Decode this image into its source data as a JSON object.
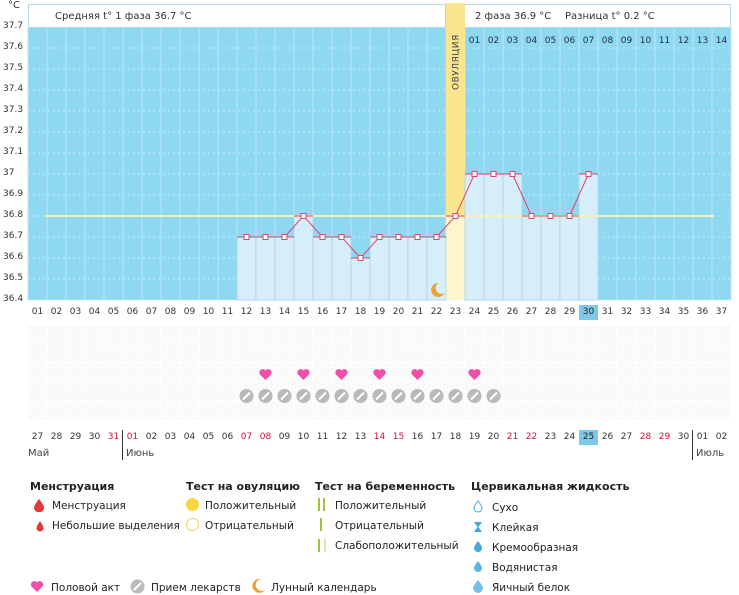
{
  "chart_data": {
    "type": "line",
    "unit": "°C",
    "y_ticks": [
      "36.4",
      "36.5",
      "36.6",
      "36.7",
      "36.8",
      "36.9",
      "37",
      "37.1",
      "37.2",
      "37.3",
      "37.4",
      "37.5",
      "37.6",
      "37.7"
    ],
    "ylim": [
      36.4,
      37.7
    ],
    "cycle_days": [
      "01",
      "02",
      "03",
      "04",
      "05",
      "06",
      "07",
      "08",
      "09",
      "10",
      "11",
      "12",
      "13",
      "14",
      "15",
      "16",
      "17",
      "18",
      "19",
      "20",
      "21",
      "22",
      "23",
      "24",
      "25",
      "26",
      "27",
      "28",
      "29",
      "30",
      "31",
      "32",
      "33",
      "34",
      "35",
      "36",
      "37"
    ],
    "post_ovulation_days": [
      "01",
      "02",
      "03",
      "04",
      "05",
      "06",
      "07",
      "08",
      "09",
      "10",
      "11",
      "12",
      "13",
      "14"
    ],
    "series": [
      {
        "values": [
          {
            "day": 12,
            "temp": 36.7
          },
          {
            "day": 13,
            "temp": 36.7
          },
          {
            "day": 14,
            "temp": 36.7
          },
          {
            "day": 15,
            "temp": 36.8
          },
          {
            "day": 16,
            "temp": 36.7
          },
          {
            "day": 17,
            "temp": 36.7
          },
          {
            "day": 18,
            "temp": 36.6
          },
          {
            "day": 19,
            "temp": 36.7
          },
          {
            "day": 20,
            "temp": 36.7
          },
          {
            "day": 21,
            "temp": 36.7
          },
          {
            "day": 22,
            "temp": 36.7
          },
          {
            "day": 23,
            "temp": 36.8
          },
          {
            "day": 24,
            "temp": 37.0
          },
          {
            "day": 25,
            "temp": 37.0
          },
          {
            "day": 26,
            "temp": 37.0
          },
          {
            "day": 27,
            "temp": 36.8
          },
          {
            "day": 28,
            "temp": 36.8
          },
          {
            "day": 29,
            "temp": 36.8
          },
          {
            "day": 30,
            "temp": 37.0
          }
        ]
      }
    ],
    "coverline": 36.8,
    "ovulation_day": 23,
    "ovulation_label": "ОВУЛЯЦИЯ",
    "current_day": 30,
    "moon_day": 22,
    "intercourse_days": [
      13,
      15,
      17,
      19,
      21,
      24
    ],
    "medication_days": [
      12,
      13,
      14,
      15,
      16,
      17,
      18,
      19,
      20,
      21,
      22,
      23,
      24,
      25
    ]
  },
  "header": {
    "phase1": "Средняя t° 1 фаза 36.7 °C",
    "phase2": "2 фаза 36.9 °C",
    "diff": "Разница t° 0.2 °C"
  },
  "calendar": {
    "dates": [
      {
        "d": "27",
        "red": false
      },
      {
        "d": "28",
        "red": false
      },
      {
        "d": "29",
        "red": false
      },
      {
        "d": "30",
        "red": false
      },
      {
        "d": "31",
        "red": true
      },
      {
        "d": "01",
        "red": true
      },
      {
        "d": "02",
        "red": false
      },
      {
        "d": "03",
        "red": false
      },
      {
        "d": "04",
        "red": false
      },
      {
        "d": "05",
        "red": false
      },
      {
        "d": "06",
        "red": false
      },
      {
        "d": "07",
        "red": true
      },
      {
        "d": "08",
        "red": true
      },
      {
        "d": "09",
        "red": false
      },
      {
        "d": "10",
        "red": false
      },
      {
        "d": "11",
        "red": false
      },
      {
        "d": "12",
        "red": false
      },
      {
        "d": "13",
        "red": false
      },
      {
        "d": "14",
        "red": true
      },
      {
        "d": "15",
        "red": true
      },
      {
        "d": "16",
        "red": false
      },
      {
        "d": "17",
        "red": false
      },
      {
        "d": "18",
        "red": false
      },
      {
        "d": "19",
        "red": false
      },
      {
        "d": "20",
        "red": false
      },
      {
        "d": "21",
        "red": true
      },
      {
        "d": "22",
        "red": true
      },
      {
        "d": "23",
        "red": false
      },
      {
        "d": "24",
        "red": false
      },
      {
        "d": "25",
        "red": false
      },
      {
        "d": "26",
        "red": false
      },
      {
        "d": "27",
        "red": false
      },
      {
        "d": "28",
        "red": true
      },
      {
        "d": "29",
        "red": true
      },
      {
        "d": "30",
        "red": false
      },
      {
        "d": "01",
        "red": false
      },
      {
        "d": "02",
        "red": false
      }
    ],
    "months": {
      "may": "Май",
      "june": "Июнь",
      "july": "Июль"
    }
  },
  "legend": {
    "menstruation": {
      "title": "Менструация",
      "items": [
        "Менструация",
        "Небольшие выделения"
      ]
    },
    "ovulation_test": {
      "title": "Тест на овуляцию",
      "items": [
        "Положительный",
        "Отрицательный"
      ]
    },
    "pregnancy_test": {
      "title": "Тест на беременность",
      "items": [
        "Положительный",
        "Отрицательный",
        "Слабоположительный"
      ]
    },
    "cervical": {
      "title": "Цервикальная жидкость",
      "items": [
        "Сухо",
        "Клейкая",
        "Кремообразная",
        "Водянистая",
        "Яичный белок"
      ]
    },
    "bottom": {
      "intercourse": "Половой акт",
      "medication": "Прием лекарств",
      "moon": "Лунный календарь"
    }
  },
  "colors": {
    "sky": "#8fd8f2",
    "bar_fill": "#d6eefa",
    "bar_edge": "#a9d3ea",
    "line": "#e0446b",
    "ovulation": "#f8e58e",
    "coverline": "#f7f0b4",
    "heart": "#f04fa9",
    "pill": "#b9b9b9",
    "moon": "#f0a030",
    "highlight": "#7fc9e8"
  }
}
